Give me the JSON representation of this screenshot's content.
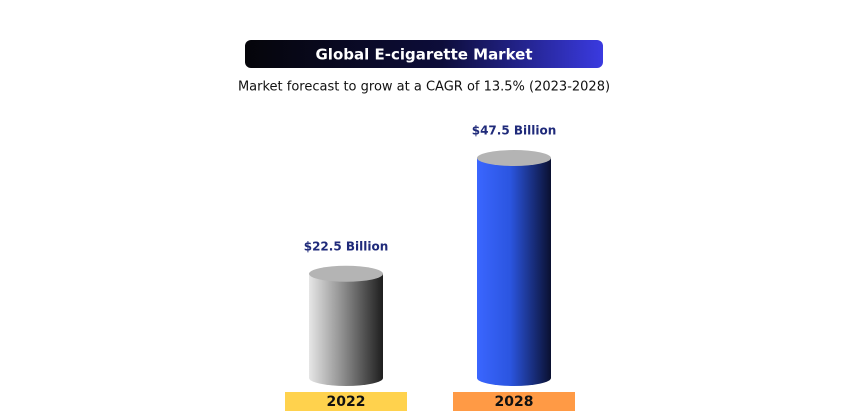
{
  "chart_data": {
    "type": "bar",
    "title": "Global E-cigarette Market",
    "subtitle": "Market forecast to grow at a CAGR of 13.5% (2023-2028)",
    "categories": [
      "2022",
      "2028"
    ],
    "values": [
      22.5,
      47.5
    ],
    "value_labels": [
      "$22.5 Billion",
      "$47.5 Billion"
    ],
    "colors": [
      "#8f8f8f",
      "#2b55e0"
    ],
    "category_colors": [
      "#ffd24d",
      "#ff9a45"
    ]
  }
}
